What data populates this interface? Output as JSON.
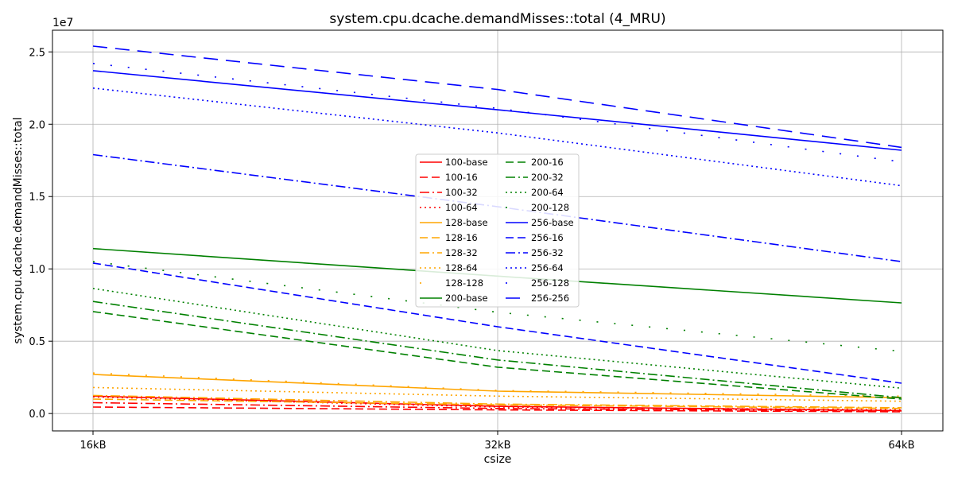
{
  "chart_data": {
    "type": "line",
    "title": "system.cpu.dcache.demandMisses::total (4_MRU)",
    "xlabel": "csize",
    "ylabel": "system.cpu.dcache.demandMisses::total",
    "y_scale_label": "1e7",
    "categories": [
      "16kB",
      "32kB",
      "64kB"
    ],
    "ylim": [
      -0.12,
      2.65
    ],
    "y_ticks": [
      0.0,
      0.5,
      1.0,
      1.5,
      2.0,
      2.5
    ],
    "y_tick_labels": [
      "0.0",
      "0.5",
      "1.0",
      "1.5",
      "2.0",
      "2.5"
    ],
    "grid": true,
    "legend_position": "center",
    "series": [
      {
        "name": "100-base",
        "color": "#ff0000",
        "dash": "solid",
        "values": [
          0.12,
          0.05,
          0.02
        ]
      },
      {
        "name": "100-16",
        "color": "#ff0000",
        "dash": "dashed",
        "values": [
          0.045,
          0.025,
          0.012
        ]
      },
      {
        "name": "100-32",
        "color": "#ff0000",
        "dash": "dashdot",
        "values": [
          0.075,
          0.035,
          0.018
        ]
      },
      {
        "name": "100-64",
        "color": "#ff0000",
        "dash": "dotted",
        "values": [
          0.115,
          0.045,
          0.025
        ]
      },
      {
        "name": "128-base",
        "color": "#ffa500",
        "dash": "solid",
        "values": [
          0.27,
          0.155,
          0.11
        ]
      },
      {
        "name": "128-16",
        "color": "#ffa500",
        "dash": "dashed",
        "values": [
          0.1,
          0.06,
          0.035
        ]
      },
      {
        "name": "128-32",
        "color": "#ffa500",
        "dash": "dashdot",
        "values": [
          0.125,
          0.065,
          0.04
        ]
      },
      {
        "name": "128-64",
        "color": "#ffa500",
        "dash": "dotted",
        "values": [
          0.18,
          0.12,
          0.085
        ]
      },
      {
        "name": "128-128",
        "color": "#ffa500",
        "dash": "sparse",
        "values": [
          0.28,
          0.16,
          0.12
        ]
      },
      {
        "name": "200-base",
        "color": "#008000",
        "dash": "solid",
        "values": [
          1.14,
          0.95,
          0.765
        ]
      },
      {
        "name": "200-16",
        "color": "#008000",
        "dash": "dashed",
        "values": [
          0.705,
          0.32,
          0.1
        ]
      },
      {
        "name": "200-32",
        "color": "#008000",
        "dash": "dashdot",
        "values": [
          0.775,
          0.37,
          0.11
        ]
      },
      {
        "name": "200-64",
        "color": "#008000",
        "dash": "dotted",
        "values": [
          0.865,
          0.435,
          0.175
        ]
      },
      {
        "name": "200-128",
        "color": "#008000",
        "dash": "sparse",
        "values": [
          1.05,
          0.7,
          0.43
        ]
      },
      {
        "name": "256-base",
        "color": "#0000ff",
        "dash": "solid",
        "values": [
          2.37,
          2.1,
          1.82
        ]
      },
      {
        "name": "256-16",
        "color": "#0000ff",
        "dash": "dashed",
        "values": [
          1.04,
          0.6,
          0.21
        ]
      },
      {
        "name": "256-32",
        "color": "#0000ff",
        "dash": "dashdot",
        "values": [
          1.79,
          1.43,
          1.05
        ]
      },
      {
        "name": "256-64",
        "color": "#0000ff",
        "dash": "dotted",
        "values": [
          2.25,
          1.94,
          1.575
        ]
      },
      {
        "name": "256-128",
        "color": "#0000ff",
        "dash": "sparse",
        "values": [
          2.42,
          2.11,
          1.74
        ]
      },
      {
        "name": "256-256",
        "color": "#0000ff",
        "dash": "longdash",
        "values": [
          2.54,
          2.24,
          1.84
        ]
      }
    ]
  }
}
